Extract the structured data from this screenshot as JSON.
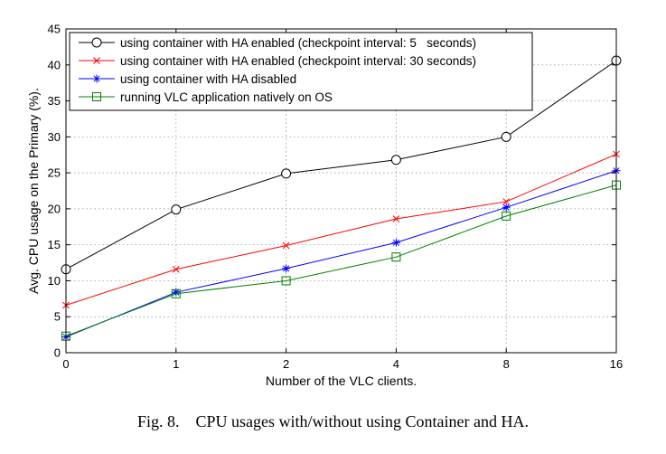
{
  "caption": {
    "label": "Fig. 8.",
    "text": "CPU usages with/without using Container and HA."
  },
  "chart_data": {
    "type": "line",
    "categories": [
      "0",
      "1",
      "2",
      "4",
      "8",
      "16"
    ],
    "xlabel": "Number of the VLC clients.",
    "ylabel": "Avg. CPU usage on the Primary (%).",
    "ylim": [
      0,
      45
    ],
    "yticks": [
      0,
      5,
      10,
      15,
      20,
      25,
      30,
      35,
      40,
      45
    ],
    "grid": true,
    "legend_position": "top-left",
    "series": [
      {
        "name": "using container with HA enabled (checkpoint interval: 5   seconds)",
        "color": "#000000",
        "marker": "circle",
        "values": [
          11.6,
          19.9,
          24.9,
          26.8,
          30.0,
          40.6
        ]
      },
      {
        "name": "using container with HA enabled (checkpoint interval: 30 seconds)",
        "color": "#ff0000",
        "marker": "x",
        "values": [
          6.6,
          11.6,
          14.9,
          18.6,
          21.0,
          27.6
        ]
      },
      {
        "name": "using container with HA disabled",
        "color": "#0000ff",
        "marker": "star",
        "values": [
          2.2,
          8.4,
          11.7,
          15.3,
          20.2,
          25.3
        ]
      },
      {
        "name": "running VLC application natively on OS",
        "color": "#008000",
        "marker": "square",
        "values": [
          2.3,
          8.2,
          10.0,
          13.3,
          19.0,
          23.3
        ]
      }
    ]
  }
}
